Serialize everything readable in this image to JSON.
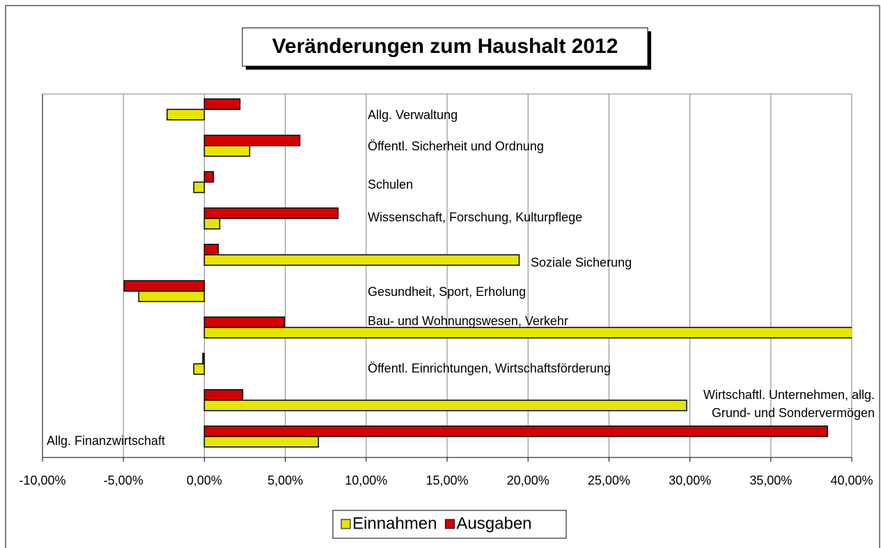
{
  "chart_data": {
    "type": "hbar",
    "title": "Veränderungen zum Haushalt 2012",
    "categories": [
      "Allg. Verwaltung",
      "Öffentl. Sicherheit und Ordnung",
      "Schulen",
      "Wissenschaft, Forschung, Kulturpflege",
      "Soziale Sicherung",
      "Gesundheit, Sport, Erholung",
      "Bau- und Wohnungswesen, Verkehr",
      "Öffentl. Einrichtungen, Wirtschaftsförderung",
      "Wirtschaftl. Unternehmen, allg.\nGrund- und Sondervermögen",
      "Allg. Finanzwirtschaft"
    ],
    "series": [
      {
        "name": "Einnahmen",
        "color": "#e6e600",
        "values": [
          -2.3,
          2.8,
          -0.65,
          0.95,
          19.45,
          -4.05,
          40.5,
          -0.65,
          29.8,
          7.05
        ]
      },
      {
        "name": "Ausgaben",
        "color": "#d40000",
        "values": [
          2.2,
          5.9,
          0.56,
          8.26,
          0.86,
          -4.95,
          4.95,
          -0.1,
          2.37,
          38.5
        ]
      }
    ],
    "xlim": [
      -10,
      40
    ],
    "xticks": [
      {
        "value": -10,
        "label": "-10,00%"
      },
      {
        "value": -5,
        "label": "-5,00%"
      },
      {
        "value": 0,
        "label": "0,00%"
      },
      {
        "value": 5,
        "label": "5,00%"
      },
      {
        "value": 10,
        "label": "10,00%"
      },
      {
        "value": 15,
        "label": "15,00%"
      },
      {
        "value": 20,
        "label": "20,00%"
      },
      {
        "value": 25,
        "label": "25,00%"
      },
      {
        "value": 30,
        "label": "30,00%"
      },
      {
        "value": 35,
        "label": "35,00%"
      },
      {
        "value": 40,
        "label": "40,00%"
      }
    ],
    "grid": true,
    "legend": "bottom"
  }
}
